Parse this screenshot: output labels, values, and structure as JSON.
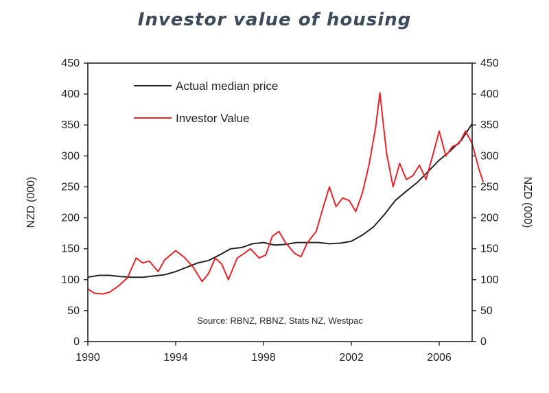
{
  "chart_data": {
    "type": "line",
    "title": "Investor value of housing",
    "ylabel_left": "NZD (000)",
    "ylabel_right": "NZD (000)",
    "xlabel": "",
    "xlim": [
      1990,
      2007.5
    ],
    "ylim": [
      0,
      450
    ],
    "x_ticks": [
      1990,
      1994,
      1998,
      2002,
      2006
    ],
    "y_ticks": [
      0,
      50,
      100,
      150,
      200,
      250,
      300,
      350,
      400,
      450
    ],
    "source": "Source: RBNZ, RBNZ, Stats NZ, Westpac",
    "legend_position": "top-left",
    "series": [
      {
        "name": "Actual median price",
        "color": "#222222",
        "points": [
          [
            1990.0,
            104
          ],
          [
            1990.5,
            107
          ],
          [
            1991.0,
            107
          ],
          [
            1991.5,
            105
          ],
          [
            1992.0,
            104
          ],
          [
            1992.5,
            104
          ],
          [
            1993.0,
            106
          ],
          [
            1993.5,
            108
          ],
          [
            1994.0,
            113
          ],
          [
            1994.5,
            120
          ],
          [
            1995.0,
            127
          ],
          [
            1995.5,
            131
          ],
          [
            1996.0,
            140
          ],
          [
            1996.5,
            150
          ],
          [
            1997.0,
            152
          ],
          [
            1997.5,
            158
          ],
          [
            1998.0,
            160
          ],
          [
            1998.5,
            156
          ],
          [
            1999.0,
            157
          ],
          [
            1999.5,
            160
          ],
          [
            2000.0,
            160
          ],
          [
            2000.5,
            160
          ],
          [
            2001.0,
            158
          ],
          [
            2001.5,
            159
          ],
          [
            2002.0,
            162
          ],
          [
            2002.5,
            172
          ],
          [
            2003.0,
            185
          ],
          [
            2003.5,
            205
          ],
          [
            2004.0,
            228
          ],
          [
            2004.5,
            243
          ],
          [
            2005.0,
            257
          ],
          [
            2005.5,
            275
          ],
          [
            2006.0,
            293
          ],
          [
            2006.5,
            308
          ],
          [
            2007.0,
            325
          ],
          [
            2007.5,
            352
          ]
        ]
      },
      {
        "name": "Investor Value",
        "color": "#e8232a",
        "points": [
          [
            1990.0,
            85
          ],
          [
            1990.3,
            78
          ],
          [
            1990.7,
            77
          ],
          [
            1991.0,
            80
          ],
          [
            1991.4,
            90
          ],
          [
            1991.8,
            103
          ],
          [
            1992.2,
            135
          ],
          [
            1992.5,
            127
          ],
          [
            1992.8,
            130
          ],
          [
            1993.2,
            113
          ],
          [
            1993.5,
            132
          ],
          [
            1994.0,
            147
          ],
          [
            1994.4,
            136
          ],
          [
            1994.8,
            120
          ],
          [
            1995.2,
            97
          ],
          [
            1995.5,
            110
          ],
          [
            1995.8,
            135
          ],
          [
            1996.1,
            125
          ],
          [
            1996.4,
            100
          ],
          [
            1996.8,
            135
          ],
          [
            1997.1,
            142
          ],
          [
            1997.4,
            150
          ],
          [
            1997.8,
            135
          ],
          [
            1998.1,
            140
          ],
          [
            1998.4,
            170
          ],
          [
            1998.7,
            178
          ],
          [
            1999.0,
            160
          ],
          [
            1999.4,
            143
          ],
          [
            1999.7,
            137
          ],
          [
            2000.0,
            160
          ],
          [
            2000.4,
            178
          ],
          [
            2000.7,
            215
          ],
          [
            2001.0,
            250
          ],
          [
            2001.3,
            218
          ],
          [
            2001.6,
            232
          ],
          [
            2001.9,
            228
          ],
          [
            2002.2,
            210
          ],
          [
            2002.5,
            240
          ],
          [
            2002.8,
            285
          ],
          [
            2003.1,
            345
          ],
          [
            2003.3,
            402
          ],
          [
            2003.6,
            305
          ],
          [
            2003.9,
            250
          ],
          [
            2004.2,
            288
          ],
          [
            2004.5,
            262
          ],
          [
            2004.8,
            268
          ],
          [
            2005.1,
            285
          ],
          [
            2005.4,
            262
          ],
          [
            2005.7,
            300
          ],
          [
            2006.0,
            340
          ],
          [
            2006.3,
            300
          ],
          [
            2006.6,
            315
          ],
          [
            2006.9,
            320
          ],
          [
            2007.2,
            340
          ],
          [
            2007.5,
            320
          ],
          [
            2007.8,
            280
          ],
          [
            2008.0,
            258
          ]
        ]
      }
    ]
  }
}
